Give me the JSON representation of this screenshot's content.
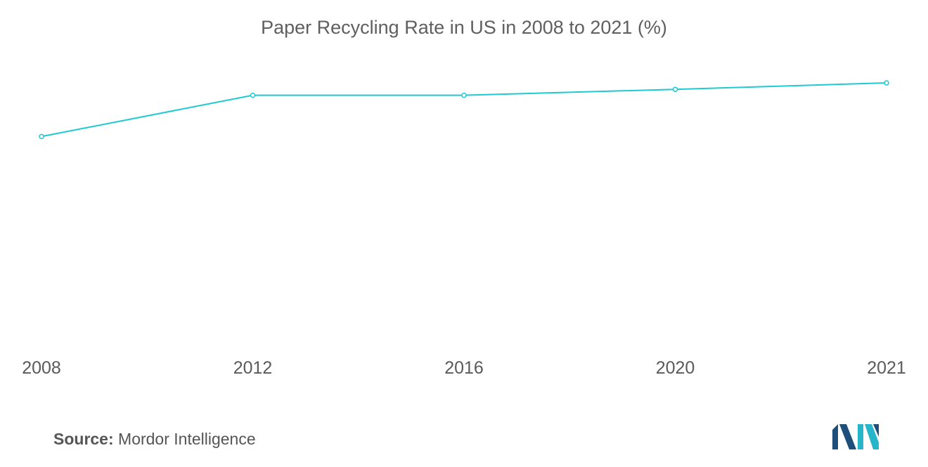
{
  "chart_data": {
    "type": "line",
    "title": "Paper Recycling Rate in US in 2008 to 2021 (%)",
    "categories": [
      "2008",
      "2012",
      "2016",
      "2020",
      "2021"
    ],
    "series": [
      {
        "values": [
          57.4,
          65.1,
          65.1,
          66.2,
          67.4
        ]
      }
    ],
    "ylim": [
      20,
      75
    ],
    "xlabel": "",
    "ylabel": "",
    "grid": false,
    "line_color": "#1fc9d2"
  },
  "footer": {
    "source_label": "Source:",
    "source_value": "Mordor Intelligence"
  },
  "logo": {
    "icon": "mordor-intelligence-logo",
    "colors": [
      "#1d4f7a",
      "#27b5c9"
    ]
  }
}
